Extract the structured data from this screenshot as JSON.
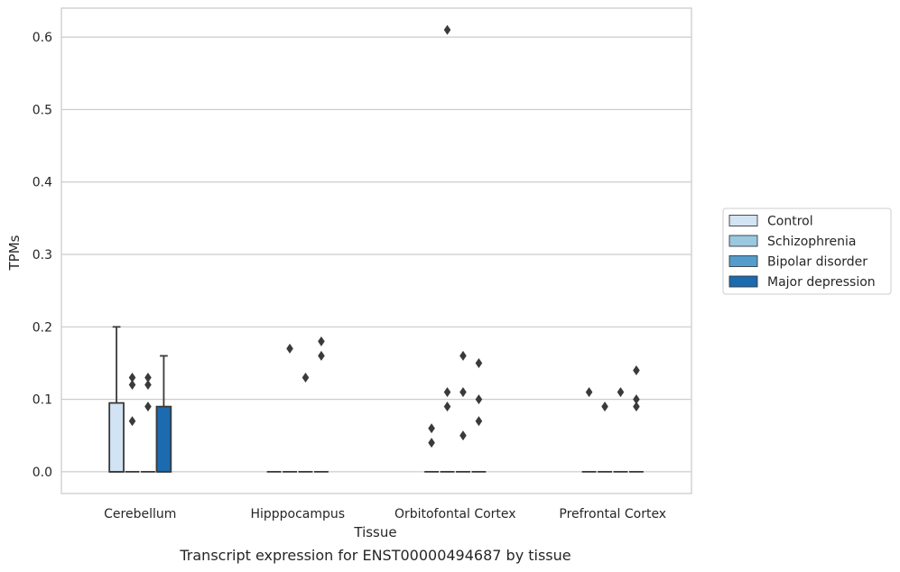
{
  "caption": "Transcript expression for ENST00000494687 by tissue",
  "chart_data": {
    "type": "box",
    "title": "",
    "xlabel": "Tissue",
    "ylabel": "TPMs",
    "ylim": [
      -0.03,
      0.64
    ],
    "yticks": [
      0.0,
      0.1,
      0.2,
      0.3,
      0.4,
      0.5,
      0.6
    ],
    "ytick_labels": [
      "0.0",
      "0.1",
      "0.2",
      "0.3",
      "0.4",
      "0.5",
      "0.6"
    ],
    "grid": "horizontal",
    "legend_position": "right",
    "categories": [
      "Cerebellum",
      "Hipppocampus",
      "Orbitofontal Cortex",
      "Prefrontal Cortex"
    ],
    "series": [
      {
        "name": "Control",
        "color": "#d2e3f3",
        "boxes": [
          {
            "q1": 0.0,
            "median": 0.0,
            "q3": 0.095,
            "whisker_low": 0.0,
            "whisker_high": 0.2,
            "outliers": []
          },
          {
            "q1": 0.0,
            "median": 0.0,
            "q3": 0.0,
            "whisker_low": 0.0,
            "whisker_high": 0.0,
            "outliers": []
          },
          {
            "q1": 0.0,
            "median": 0.0,
            "q3": 0.0,
            "whisker_low": 0.0,
            "whisker_high": 0.0,
            "outliers": [
              0.06,
              0.04
            ]
          },
          {
            "q1": 0.0,
            "median": 0.0,
            "q3": 0.0,
            "whisker_low": 0.0,
            "whisker_high": 0.0,
            "outliers": [
              0.11
            ]
          }
        ]
      },
      {
        "name": "Schizophrenia",
        "color": "#9ac8e0",
        "boxes": [
          {
            "q1": 0.0,
            "median": 0.0,
            "q3": 0.0,
            "whisker_low": 0.0,
            "whisker_high": 0.0,
            "outliers": [
              0.13,
              0.12,
              0.07
            ]
          },
          {
            "q1": 0.0,
            "median": 0.0,
            "q3": 0.0,
            "whisker_low": 0.0,
            "whisker_high": 0.0,
            "outliers": [
              0.17
            ]
          },
          {
            "q1": 0.0,
            "median": 0.0,
            "q3": 0.0,
            "whisker_low": 0.0,
            "whisker_high": 0.0,
            "outliers": [
              0.61,
              0.11,
              0.09
            ]
          },
          {
            "q1": 0.0,
            "median": 0.0,
            "q3": 0.0,
            "whisker_low": 0.0,
            "whisker_high": 0.0,
            "outliers": [
              0.09
            ]
          }
        ]
      },
      {
        "name": "Bipolar disorder",
        "color": "#529dcc",
        "boxes": [
          {
            "q1": 0.0,
            "median": 0.0,
            "q3": 0.0,
            "whisker_low": 0.0,
            "whisker_high": 0.0,
            "outliers": [
              0.13,
              0.12,
              0.09
            ]
          },
          {
            "q1": 0.0,
            "median": 0.0,
            "q3": 0.0,
            "whisker_low": 0.0,
            "whisker_high": 0.0,
            "outliers": [
              0.13
            ]
          },
          {
            "q1": 0.0,
            "median": 0.0,
            "q3": 0.0,
            "whisker_low": 0.0,
            "whisker_high": 0.0,
            "outliers": [
              0.16,
              0.11,
              0.05
            ]
          },
          {
            "q1": 0.0,
            "median": 0.0,
            "q3": 0.0,
            "whisker_low": 0.0,
            "whisker_high": 0.0,
            "outliers": [
              0.11
            ]
          }
        ]
      },
      {
        "name": "Major depression",
        "color": "#1c6aaf",
        "boxes": [
          {
            "q1": 0.0,
            "median": 0.0,
            "q3": 0.09,
            "whisker_low": 0.0,
            "whisker_high": 0.16,
            "outliers": []
          },
          {
            "q1": 0.0,
            "median": 0.0,
            "q3": 0.0,
            "whisker_low": 0.0,
            "whisker_high": 0.0,
            "outliers": [
              0.18,
              0.16
            ]
          },
          {
            "q1": 0.0,
            "median": 0.0,
            "q3": 0.0,
            "whisker_low": 0.0,
            "whisker_high": 0.0,
            "outliers": [
              0.15,
              0.1,
              0.07
            ]
          },
          {
            "q1": 0.0,
            "median": 0.0,
            "q3": 0.0,
            "whisker_low": 0.0,
            "whisker_high": 0.0,
            "outliers": [
              0.14,
              0.1,
              0.09
            ]
          }
        ]
      }
    ]
  }
}
